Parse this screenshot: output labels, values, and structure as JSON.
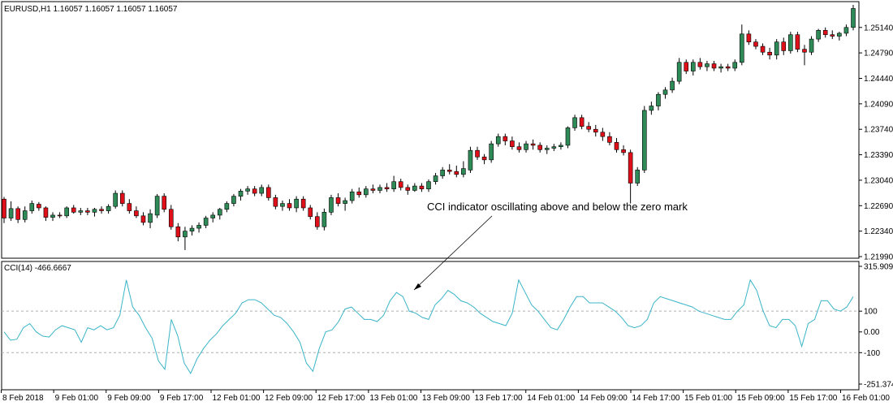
{
  "chart_data": [
    {
      "type": "candlestick",
      "title": "EURUSD,H1  1.16057 1.16057 1.16057 1.16057",
      "ylim": [
        1.2199,
        1.2545
      ],
      "y_ticks": [
        "1.25140",
        "1.24790",
        "1.24440",
        "1.24090",
        "1.23740",
        "1.23390",
        "1.23040",
        "1.22690",
        "1.22340",
        "1.21990"
      ],
      "up_color": "#2e8b57",
      "down_color": "#e0101a",
      "candles": [
        [
          1.2278,
          1.2281,
          1.2245,
          1.2252
        ],
        [
          1.2252,
          1.2275,
          1.2248,
          1.2265
        ],
        [
          1.2265,
          1.2268,
          1.2245,
          1.225
        ],
        [
          1.225,
          1.2268,
          1.2246,
          1.2262
        ],
        [
          1.2262,
          1.2276,
          1.2258,
          1.2272
        ],
        [
          1.2271,
          1.2274,
          1.2262,
          1.2266
        ],
        [
          1.2266,
          1.2268,
          1.2248,
          1.2253
        ],
        [
          1.2253,
          1.226,
          1.2248,
          1.2256
        ],
        [
          1.2256,
          1.226,
          1.2252,
          1.2255
        ],
        [
          1.2255,
          1.2268,
          1.2252,
          1.2266
        ],
        [
          1.2266,
          1.227,
          1.2258,
          1.226
        ],
        [
          1.226,
          1.2266,
          1.2256,
          1.2262
        ],
        [
          1.2262,
          1.2266,
          1.2256,
          1.226
        ],
        [
          1.226,
          1.2266,
          1.2254,
          1.2264
        ],
        [
          1.2264,
          1.2268,
          1.2258,
          1.2262
        ],
        [
          1.2262,
          1.2271,
          1.2258,
          1.2268
        ],
        [
          1.2268,
          1.229,
          1.2265,
          1.2286
        ],
        [
          1.2286,
          1.229,
          1.2268,
          1.2272
        ],
        [
          1.2272,
          1.2278,
          1.2258,
          1.2262
        ],
        [
          1.2262,
          1.2268,
          1.2252,
          1.2255
        ],
        [
          1.2255,
          1.226,
          1.2242,
          1.2246
        ],
        [
          1.2246,
          1.2264,
          1.2238,
          1.2258
        ],
        [
          1.2256,
          1.2285,
          1.2252,
          1.2282
        ],
        [
          1.2282,
          1.2286,
          1.226,
          1.2264
        ],
        [
          1.2264,
          1.227,
          1.2236,
          1.224
        ],
        [
          1.224,
          1.2245,
          1.222,
          1.2226
        ],
        [
          1.2226,
          1.224,
          1.2208,
          1.2234
        ],
        [
          1.2234,
          1.2242,
          1.2228,
          1.2238
        ],
        [
          1.2238,
          1.2246,
          1.2232,
          1.2242
        ],
        [
          1.2242,
          1.2255,
          1.2238,
          1.2252
        ],
        [
          1.2252,
          1.226,
          1.2246,
          1.2256
        ],
        [
          1.2256,
          1.2266,
          1.225,
          1.2264
        ],
        [
          1.2264,
          1.2275,
          1.226,
          1.2272
        ],
        [
          1.2272,
          1.2285,
          1.2268,
          1.2282
        ],
        [
          1.2282,
          1.2292,
          1.2276,
          1.2289
        ],
        [
          1.2289,
          1.2296,
          1.2284,
          1.2292
        ],
        [
          1.2292,
          1.2296,
          1.2282,
          1.2286
        ],
        [
          1.2286,
          1.2298,
          1.2282,
          1.2294
        ],
        [
          1.2294,
          1.2298,
          1.2276,
          1.228
        ],
        [
          1.228,
          1.2284,
          1.2264,
          1.2268
        ],
        [
          1.2268,
          1.2276,
          1.2262,
          1.2272
        ],
        [
          1.2272,
          1.2278,
          1.2262,
          1.2266
        ],
        [
          1.2266,
          1.2282,
          1.226,
          1.2278
        ],
        [
          1.2278,
          1.2282,
          1.2262,
          1.2266
        ],
        [
          1.2266,
          1.227,
          1.225,
          1.2254
        ],
        [
          1.2254,
          1.226,
          1.2236,
          1.224
        ],
        [
          1.224,
          1.2265,
          1.2235,
          1.226
        ],
        [
          1.226,
          1.2284,
          1.2256,
          1.228
        ],
        [
          1.228,
          1.2286,
          1.2268,
          1.2272
        ],
        [
          1.2272,
          1.228,
          1.2262,
          1.2276
        ],
        [
          1.2276,
          1.2292,
          1.2272,
          1.2288
        ],
        [
          1.2288,
          1.2294,
          1.228,
          1.2284
        ],
        [
          1.2284,
          1.2296,
          1.228,
          1.2292
        ],
        [
          1.2292,
          1.2298,
          1.2286,
          1.229
        ],
        [
          1.229,
          1.2298,
          1.2286,
          1.2294
        ],
        [
          1.2294,
          1.23,
          1.2288,
          1.2292
        ],
        [
          1.2292,
          1.231,
          1.2288,
          1.2302
        ],
        [
          1.2302,
          1.2306,
          1.229,
          1.2294
        ],
        [
          1.2294,
          1.2298,
          1.2284,
          1.229
        ],
        [
          1.229,
          1.23,
          1.2288,
          1.2296
        ],
        [
          1.2296,
          1.23,
          1.2288,
          1.2292
        ],
        [
          1.2292,
          1.2305,
          1.2288,
          1.2302
        ],
        [
          1.2302,
          1.2314,
          1.2298,
          1.231
        ],
        [
          1.231,
          1.2322,
          1.2306,
          1.2318
        ],
        [
          1.2318,
          1.2326,
          1.2312,
          1.2316
        ],
        [
          1.2316,
          1.2324,
          1.2308,
          1.2312
        ],
        [
          1.2312,
          1.233,
          1.2308,
          1.232
        ],
        [
          1.2318,
          1.235,
          1.2314,
          1.2345
        ],
        [
          1.2345,
          1.235,
          1.2332,
          1.2336
        ],
        [
          1.2336,
          1.234,
          1.2326,
          1.2332
        ],
        [
          1.2332,
          1.2358,
          1.2328,
          1.2354
        ],
        [
          1.2354,
          1.2368,
          1.235,
          1.2364
        ],
        [
          1.2364,
          1.2368,
          1.2352,
          1.2358
        ],
        [
          1.2358,
          1.2364,
          1.2346,
          1.235
        ],
        [
          1.235,
          1.2356,
          1.2342,
          1.2346
        ],
        [
          1.2346,
          1.2358,
          1.2342,
          1.2354
        ],
        [
          1.2354,
          1.236,
          1.2346,
          1.2352
        ],
        [
          1.2352,
          1.2356,
          1.2342,
          1.2346
        ],
        [
          1.2346,
          1.2352,
          1.234,
          1.2348
        ],
        [
          1.2348,
          1.2354,
          1.2344,
          1.235
        ],
        [
          1.235,
          1.2356,
          1.2346,
          1.2352
        ],
        [
          1.2352,
          1.2378,
          1.2348,
          1.2376
        ],
        [
          1.2376,
          1.2394,
          1.2372,
          1.239
        ],
        [
          1.239,
          1.2394,
          1.2374,
          1.2378
        ],
        [
          1.2378,
          1.2384,
          1.237,
          1.2374
        ],
        [
          1.2374,
          1.238,
          1.2364,
          1.237
        ],
        [
          1.237,
          1.2376,
          1.2358,
          1.2364
        ],
        [
          1.2364,
          1.237,
          1.2352,
          1.2356
        ],
        [
          1.2356,
          1.2362,
          1.2342,
          1.2346
        ],
        [
          1.2346,
          1.2352,
          1.2338,
          1.2342
        ],
        [
          1.2342,
          1.2346,
          1.2272,
          1.23
        ],
        [
          1.23,
          1.2322,
          1.2296,
          1.2318
        ],
        [
          1.2318,
          1.2406,
          1.2314,
          1.24
        ],
        [
          1.24,
          1.2412,
          1.2394,
          1.2406
        ],
        [
          1.2406,
          1.2425,
          1.24,
          1.2422
        ],
        [
          1.2422,
          1.2432,
          1.2416,
          1.2428
        ],
        [
          1.2428,
          1.2445,
          1.2424,
          1.244
        ],
        [
          1.244,
          1.2472,
          1.2436,
          1.2466
        ],
        [
          1.2466,
          1.247,
          1.245,
          1.2454
        ],
        [
          1.2454,
          1.247,
          1.2448,
          1.2466
        ],
        [
          1.2466,
          1.2472,
          1.2456,
          1.246
        ],
        [
          1.246,
          1.2468,
          1.2454,
          1.2464
        ],
        [
          1.2464,
          1.2468,
          1.2454,
          1.2458
        ],
        [
          1.2458,
          1.2464,
          1.2452,
          1.246
        ],
        [
          1.246,
          1.2464,
          1.2454,
          1.2458
        ],
        [
          1.2458,
          1.247,
          1.2454,
          1.2466
        ],
        [
          1.2466,
          1.2518,
          1.2462,
          1.2505
        ],
        [
          1.2505,
          1.251,
          1.249,
          1.2494
        ],
        [
          1.2494,
          1.2498,
          1.2484,
          1.2488
        ],
        [
          1.2488,
          1.2492,
          1.2476,
          1.248
        ],
        [
          1.248,
          1.2486,
          1.247,
          1.2476
        ],
        [
          1.2476,
          1.2498,
          1.247,
          1.2494
        ],
        [
          1.2494,
          1.25,
          1.2476,
          1.2482
        ],
        [
          1.2482,
          1.2508,
          1.2478,
          1.2504
        ],
        [
          1.2504,
          1.2508,
          1.248,
          1.2484
        ],
        [
          1.2484,
          1.249,
          1.2462,
          1.248
        ],
        [
          1.248,
          1.2502,
          1.2476,
          1.2498
        ],
        [
          1.2498,
          1.2512,
          1.2494,
          1.251
        ],
        [
          1.251,
          1.2514,
          1.25,
          1.2504
        ],
        [
          1.2504,
          1.251,
          1.2498,
          1.2502
        ],
        [
          1.2502,
          1.2508,
          1.2496,
          1.2506
        ],
        [
          1.2506,
          1.2518,
          1.2502,
          1.2514
        ],
        [
          1.2514,
          1.2545,
          1.251,
          1.254
        ]
      ]
    },
    {
      "type": "line",
      "title": "CCI(14) -466.6667",
      "ylim": [
        -251.374,
        315.9095
      ],
      "y_ticks": [
        "315.9095",
        "100",
        "0.00",
        "-100",
        "-251.374"
      ],
      "line_color": "#3ab4c8",
      "series": [
        {
          "values": [
            0,
            -40,
            -35,
            20,
            40,
            0,
            -20,
            -25,
            10,
            30,
            20,
            10,
            -50,
            20,
            10,
            30,
            10,
            20,
            80,
            250,
            120,
            80,
            20,
            -30,
            -140,
            -180,
            60,
            -20,
            -150,
            -200,
            -130,
            -80,
            -40,
            -10,
            30,
            60,
            90,
            140,
            155,
            155,
            140,
            110,
            80,
            70,
            40,
            0,
            -50,
            -150,
            -190,
            -80,
            0,
            10,
            50,
            110,
            120,
            90,
            60,
            60,
            50,
            80,
            150,
            190,
            170,
            100,
            90,
            70,
            60,
            130,
            160,
            200,
            180,
            150,
            140,
            120,
            90,
            70,
            50,
            40,
            30,
            90,
            250,
            190,
            130,
            100,
            60,
            20,
            10,
            60,
            120,
            170,
            170,
            140,
            140,
            140,
            120,
            100,
            70,
            30,
            20,
            30,
            60,
            140,
            170,
            160,
            150,
            140,
            130,
            120,
            100,
            90,
            80,
            70,
            60,
            60,
            100,
            130,
            250,
            200,
            100,
            30,
            20,
            60,
            60,
            30,
            -70,
            40,
            60,
            150,
            150,
            110,
            100,
            120,
            170
          ]
        }
      ]
    }
  ],
  "x_ticks": [
    "8 Feb 2018",
    "9 Feb 01:00",
    "9 Feb 09:00",
    "9 Feb 17:00",
    "12 Feb 01:00",
    "12 Feb 09:00",
    "12 Feb 17:00",
    "13 Feb 01:00",
    "13 Feb 09:00",
    "13 Feb 17:00",
    "14 Feb 01:00",
    "14 Feb 09:00",
    "14 Feb 17:00",
    "15 Feb 01:00",
    "15 Feb 09:00",
    "15 Feb 17:00",
    "16 Feb 01:00"
  ],
  "annotation": "CCI indicator oscillating above and below the zero mark",
  "cci_levels": [
    100,
    0,
    -100
  ],
  "colors": {
    "axis": "#000000",
    "grid_dash": "#b0b0b0",
    "background": "#ffffff"
  }
}
